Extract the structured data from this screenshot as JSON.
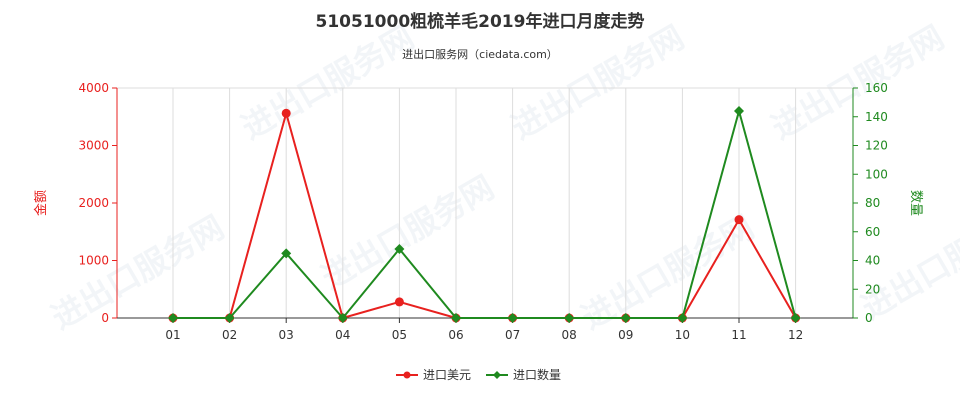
{
  "colors": {
    "left_axis": "#e8211f",
    "right_axis": "#1f8a1f",
    "grid": "#dddddd",
    "title": "#333333"
  },
  "watermark_text": "进出口服务网",
  "chart_data": {
    "type": "line",
    "title": "51051000粗梳羊毛2019年进口月度走势",
    "subtitle": "进出口服务网（ciedata.com）",
    "categories": [
      "01",
      "02",
      "03",
      "04",
      "05",
      "06",
      "07",
      "08",
      "09",
      "10",
      "11",
      "12"
    ],
    "y_left": {
      "label": "金额",
      "ylim": [
        0,
        4000
      ],
      "ticks": [
        0,
        1000,
        2000,
        3000,
        4000
      ]
    },
    "y_right": {
      "label": "数量",
      "ylim": [
        0,
        160
      ],
      "ticks": [
        0,
        20,
        40,
        60,
        80,
        100,
        120,
        140,
        160
      ]
    },
    "grid": "vertical",
    "legend_position": "bottom-center",
    "series": [
      {
        "name": "进口美元",
        "axis": "left",
        "color": "#e8211f",
        "marker": "circle",
        "values": [
          0,
          0,
          3560,
          0,
          280,
          0,
          0,
          0,
          0,
          0,
          1710,
          0
        ]
      },
      {
        "name": "进口数量",
        "axis": "right",
        "color": "#1f8a1f",
        "marker": "diamond",
        "values": [
          0,
          0,
          45,
          0,
          48,
          0,
          0,
          0,
          0,
          0,
          144,
          0
        ]
      }
    ]
  }
}
